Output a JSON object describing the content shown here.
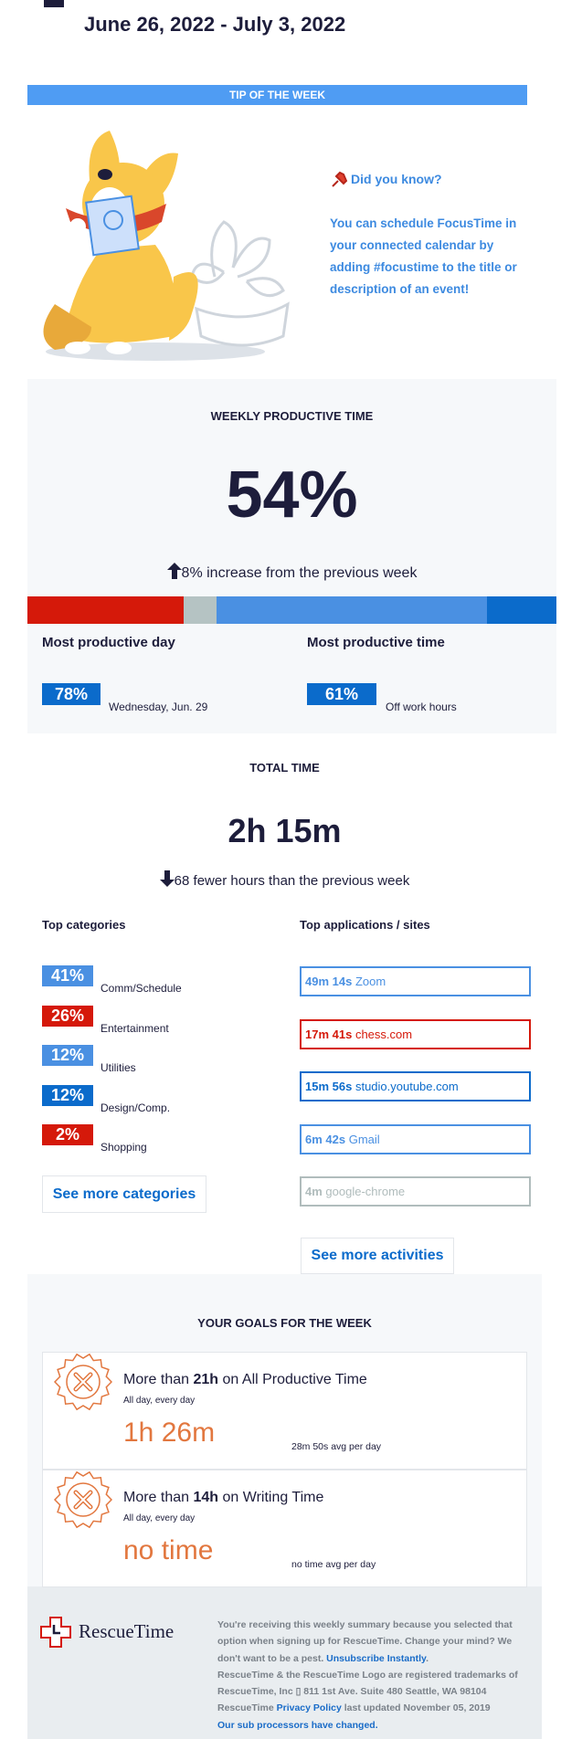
{
  "header": {
    "date_range": "June 26, 2022 - July 3, 2022"
  },
  "tip": {
    "heading": "TIP OF THE WEEK",
    "title": "Did you know?",
    "text": "You can schedule FocusTime in your connected calendar by adding #focustime to the title or description of an event!"
  },
  "productive": {
    "heading": "WEEKLY PRODUCTIVE TIME",
    "value": "54%",
    "change": "8% increase from the previous week",
    "bar_segments": [
      {
        "color": "#d5190a",
        "value": 29.5
      },
      {
        "color": "#b5c3c3",
        "value": 6.2
      },
      {
        "color": "#4a90e2",
        "value": 51.1
      },
      {
        "color": "#0b6bcb",
        "value": 13.2
      }
    ],
    "best_day": {
      "label": "Most productive day",
      "value": "78%",
      "detail": "Wednesday, Jun. 29"
    },
    "best_time": {
      "label": "Most productive time",
      "value": "61%",
      "detail": "Off work hours"
    }
  },
  "total": {
    "heading": "TOTAL TIME",
    "value": "2h 15m",
    "change": "68 fewer hours than the previous week",
    "categories_heading": "Top categories",
    "apps_heading": "Top applications / sites",
    "categories": [
      {
        "value": "41%",
        "name": "Comm/Schedule",
        "color": "#4a90e2"
      },
      {
        "value": "26%",
        "name": "Entertainment",
        "color": "#d5190a"
      },
      {
        "value": "12%",
        "name": "Utilities",
        "color": "#4a90e2"
      },
      {
        "value": "12%",
        "name": "Design/Comp.",
        "color": "#0b6bcb"
      },
      {
        "value": "2%",
        "name": "Shopping",
        "color": "#d5190a"
      }
    ],
    "apps": [
      {
        "time": "49m 14s",
        "name": "Zoom",
        "color": "#4a90e2"
      },
      {
        "time": "17m 41s",
        "name": "chess.com",
        "color": "#d5190a"
      },
      {
        "time": "15m 56s",
        "name": "studio.youtube.com",
        "color": "#0b6bcb"
      },
      {
        "time": "6m 42s",
        "name": "Gmail",
        "color": "#4a90e2"
      },
      {
        "time": "4m",
        "name": "google-chrome",
        "color": "#b0bcbc"
      }
    ],
    "more_categories": "See more categories",
    "more_activities": "See more activities"
  },
  "goals": {
    "heading": "YOUR GOALS FOR THE WEEK",
    "items": [
      {
        "prefix": "More than",
        "target": "21h",
        "suffix": "on All Productive Time",
        "schedule": "All day, every day",
        "actual": "1h 26m",
        "average": "28m 50s avg per day"
      },
      {
        "prefix": "More than",
        "target": "14h",
        "suffix": "on Writing Time",
        "schedule": "All day, every day",
        "actual": "no time",
        "average": "no time avg per day"
      }
    ]
  },
  "footer": {
    "logo": "RescueTime",
    "notice": "You're receiving this weekly summary because you selected that option when signing up for RescueTime. Change your mind? We don't want to be a pest.",
    "unsubscribe": "Unsubscribe Instantly",
    "unsubscribe_end": ".",
    "trademark": "RescueTime & the RescueTime Logo are registered trademarks of RescueTime, Inc ▯ 811 1st Ave. Suite 480 Seattle, WA 98104",
    "policy_prefix": "RescueTime",
    "privacy": "Privacy Policy",
    "policy_suffix": "last updated November 05, 2019",
    "subprocessors": "Our sub processors have changed."
  }
}
